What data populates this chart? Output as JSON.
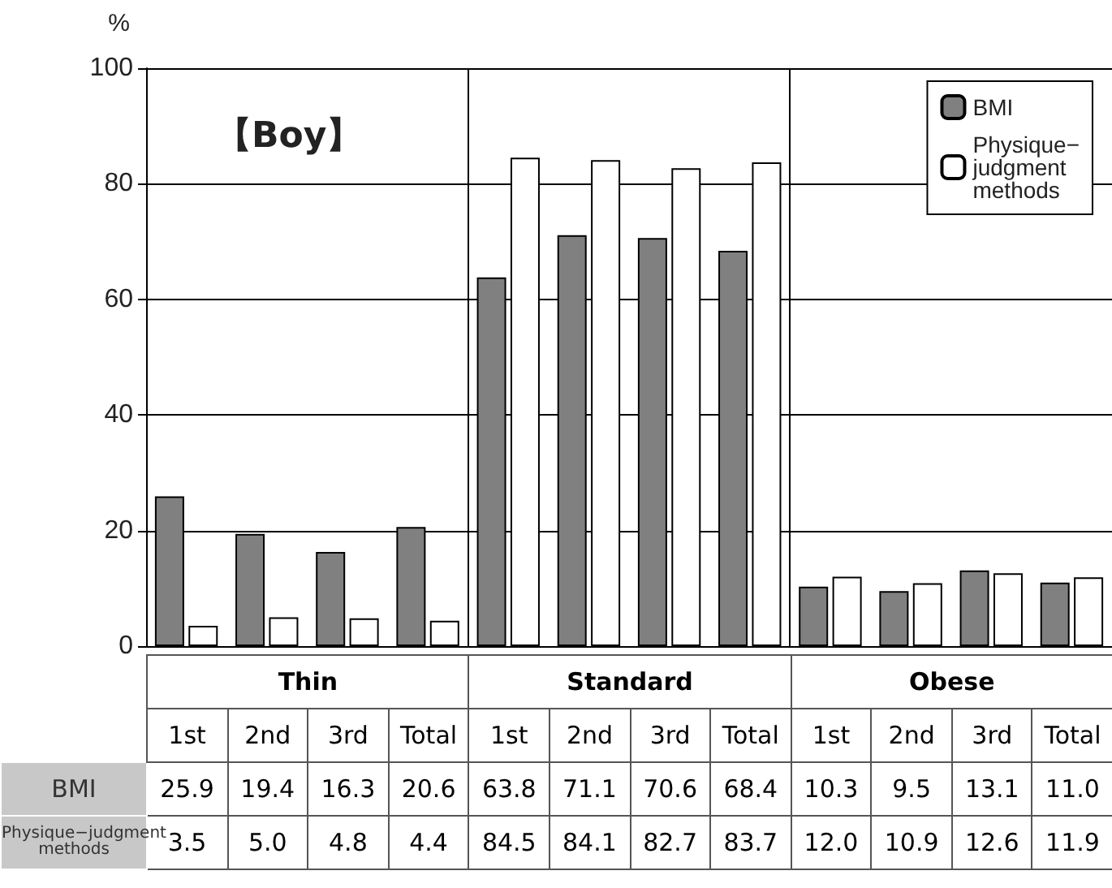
{
  "chart_data": {
    "type": "bar",
    "title": "【Boy】",
    "ylabel": "%",
    "categories": [
      "1st",
      "2nd",
      "3rd",
      "Total",
      "1st",
      "2nd",
      "3rd",
      "Total",
      "1st",
      "2nd",
      "3rd",
      "Total"
    ],
    "annotations": [
      "Thin",
      "Standard",
      "Obese"
    ],
    "series": [
      {
        "name": "BMI",
        "color": "#808080",
        "values": [
          25.9,
          19.4,
          16.3,
          20.6,
          63.8,
          71.1,
          70.6,
          68.4,
          10.3,
          9.5,
          13.1,
          11.0
        ],
        "value_labels": [
          "25.9",
          "19.4",
          "16.3",
          "20.6",
          "63.8",
          "71.1",
          "70.6",
          "68.4",
          "10.3",
          "9.5",
          "13.1",
          "11.0"
        ]
      },
      {
        "name": "Physique−judgment methods",
        "color": "#ffffff",
        "values": [
          3.5,
          5.0,
          4.8,
          4.4,
          84.5,
          84.1,
          82.7,
          83.7,
          12.0,
          10.9,
          12.6,
          11.9
        ],
        "value_labels": [
          "3.5",
          "5.0",
          "4.8",
          "4.4",
          "84.5",
          "84.1",
          "82.7",
          "83.7",
          "12.0",
          "10.9",
          "12.6",
          "11.9"
        ]
      }
    ],
    "ylim": [
      0,
      100
    ],
    "yticks": [
      0,
      20,
      40,
      60,
      80,
      100
    ],
    "grid": "y",
    "legend": "top right"
  }
}
